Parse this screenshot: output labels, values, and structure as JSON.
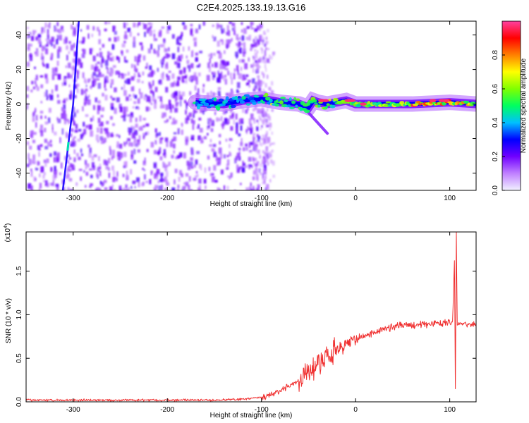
{
  "title": "C2E4.2025.133.19.13.G16",
  "colors": {
    "snr_line": "#f03030",
    "colormap": [
      "#f2f2ff",
      "#c080ff",
      "#7000ff",
      "#0000ff",
      "#00c0ff",
      "#00ff60",
      "#80ff00",
      "#ffff00",
      "#ff8000",
      "#ff0000",
      "#ff40a0"
    ]
  },
  "chart_data": [
    {
      "type": "heatmap",
      "xlabel": "Height of straight line (km)",
      "ylabel": "Frequency (Hz)",
      "xlim": [
        -350,
        128
      ],
      "ylim": [
        -50,
        48
      ],
      "xticks": [
        -300,
        -200,
        -100,
        0,
        100
      ],
      "yticks": [
        -40,
        -20,
        0,
        20,
        40
      ],
      "grid": false,
      "colorbar": {
        "label": "Normalized spectral amplitude",
        "range": [
          0,
          1
        ],
        "ticks": [
          "0.0",
          "0.2",
          "0.4",
          "0.6",
          "0.8"
        ]
      },
      "description_points": {
        "noise_region_x": [
          -350,
          -100
        ],
        "noise_y_range": [
          -50,
          48
        ],
        "tone_centerline": {
          "x": [
            -170,
            -140,
            -120,
            -100,
            -80,
            -60,
            -50,
            -45,
            -40,
            -30,
            -20,
            -10,
            0,
            20,
            60,
            100,
            128
          ],
          "y": [
            1,
            0,
            2,
            3,
            1,
            0,
            -2,
            2,
            1,
            0,
            1,
            2,
            0,
            0,
            0,
            1,
            0
          ]
        },
        "tail_x": [
          -50,
          -30
        ],
        "tail_y": [
          -5,
          -17
        ],
        "artifact_line": {
          "x": [
            -311,
            -300,
            -294
          ],
          "y": [
            -50,
            0,
            48
          ]
        }
      }
    },
    {
      "type": "line",
      "title": "",
      "xlabel": "Height of straight line (km)",
      "ylabel": "SNR (10 * v/v)",
      "multiplier": "(x10",
      "multiplier_exp": "4",
      "xlim": [
        -350,
        128
      ],
      "ylim": [
        0,
        1.95
      ],
      "xticks": [
        -300,
        -200,
        -100,
        0,
        100
      ],
      "yticks": [
        "0.0",
        "0.5",
        "1.0",
        "1.5"
      ],
      "grid": false,
      "series": [
        {
          "x": [
            -350,
            -300,
            -250,
            -200,
            -150,
            -120,
            -100,
            -90,
            -80,
            -70,
            -60,
            -50,
            -45,
            -40,
            -35,
            -30,
            -25,
            -20,
            -15,
            -10,
            -5,
            0,
            10,
            20,
            30,
            40,
            50,
            60,
            70,
            80,
            90,
            100,
            103,
            105,
            106,
            107,
            108,
            110,
            115,
            120,
            128
          ],
          "y": [
            0.02,
            0.02,
            0.02,
            0.02,
            0.02,
            0.03,
            0.05,
            0.08,
            0.13,
            0.18,
            0.25,
            0.33,
            0.38,
            0.45,
            0.42,
            0.5,
            0.55,
            0.6,
            0.62,
            0.66,
            0.7,
            0.72,
            0.76,
            0.8,
            0.84,
            0.86,
            0.88,
            0.88,
            0.89,
            0.9,
            0.9,
            0.92,
            0.9,
            1.62,
            0.15,
            1.95,
            0.88,
            0.9,
            0.9,
            0.88,
            0.89
          ]
        }
      ]
    }
  ]
}
